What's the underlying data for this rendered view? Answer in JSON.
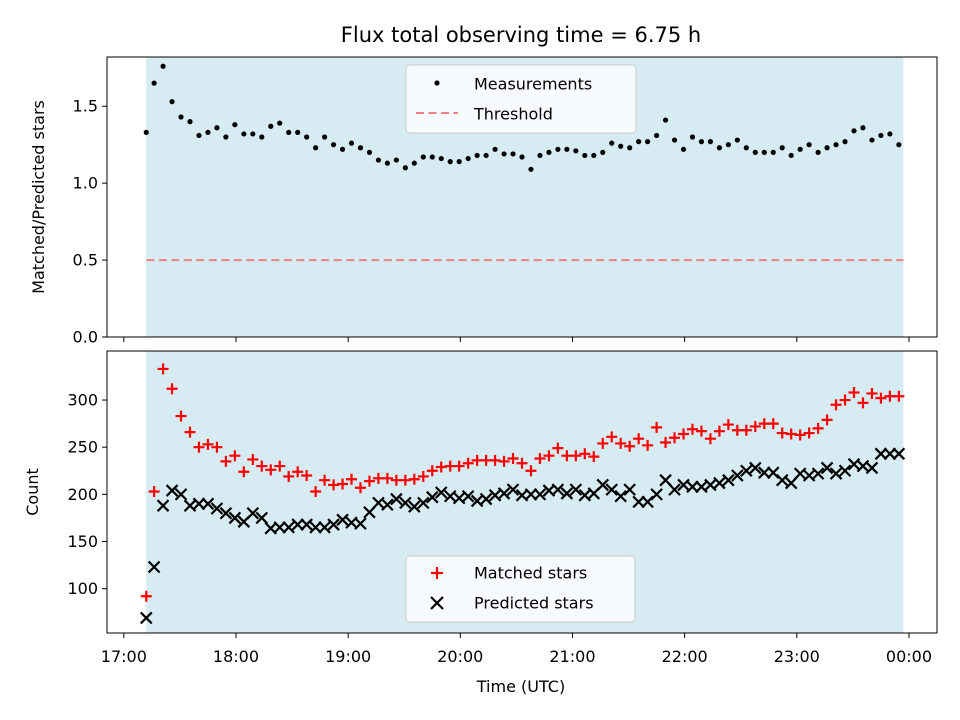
{
  "chart_data": [
    {
      "type": "scatter",
      "title": "Flux total observing time = 6.75 h",
      "ylabel": "Matched/Predicted stars",
      "xlabel": "",
      "ylim": [
        0,
        1.82
      ],
      "yticks": [
        "0.0",
        "0.5",
        "1.0",
        "1.5"
      ],
      "observing_window": {
        "start_hours": 17.2,
        "end_hours": 23.95,
        "color": "#add8e6"
      },
      "legend": {
        "placement": "upper-center",
        "entries": [
          "Measurements",
          "Threshold"
        ]
      },
      "series": [
        {
          "name": "Measurements",
          "marker": "dot",
          "color": "#000000",
          "x": [
            17.2,
            17.27,
            17.35,
            17.43,
            17.51,
            17.59,
            17.67,
            17.75,
            17.83,
            17.91,
            17.99,
            18.07,
            18.15,
            18.23,
            18.31,
            18.39,
            18.47,
            18.55,
            18.63,
            18.71,
            18.79,
            18.87,
            18.95,
            19.03,
            19.11,
            19.19,
            19.27,
            19.35,
            19.43,
            19.51,
            19.59,
            19.67,
            19.75,
            19.83,
            19.91,
            19.99,
            20.07,
            20.15,
            20.23,
            20.31,
            20.39,
            20.47,
            20.55,
            20.63,
            20.71,
            20.79,
            20.87,
            20.95,
            21.03,
            21.11,
            21.19,
            21.27,
            21.35,
            21.43,
            21.51,
            21.59,
            21.67,
            21.75,
            21.83,
            21.91,
            21.99,
            22.07,
            22.15,
            22.23,
            22.31,
            22.39,
            22.47,
            22.55,
            22.63,
            22.71,
            22.79,
            22.87,
            22.95,
            23.03,
            23.11,
            23.19,
            23.27,
            23.35,
            23.43,
            23.51,
            23.59,
            23.67,
            23.75,
            23.83,
            23.91
          ],
          "y": [
            1.33,
            1.65,
            1.76,
            1.53,
            1.43,
            1.4,
            1.31,
            1.33,
            1.36,
            1.3,
            1.38,
            1.32,
            1.32,
            1.3,
            1.37,
            1.39,
            1.33,
            1.33,
            1.3,
            1.23,
            1.3,
            1.25,
            1.22,
            1.26,
            1.23,
            1.2,
            1.15,
            1.13,
            1.15,
            1.1,
            1.13,
            1.17,
            1.17,
            1.16,
            1.14,
            1.14,
            1.16,
            1.18,
            1.18,
            1.22,
            1.19,
            1.19,
            1.17,
            1.09,
            1.18,
            1.2,
            1.22,
            1.22,
            1.21,
            1.18,
            1.18,
            1.2,
            1.26,
            1.24,
            1.23,
            1.27,
            1.27,
            1.31,
            1.41,
            1.28,
            1.22,
            1.3,
            1.27,
            1.27,
            1.23,
            1.25,
            1.28,
            1.23,
            1.2,
            1.2,
            1.2,
            1.23,
            1.18,
            1.22,
            1.25,
            1.2,
            1.23,
            1.25,
            1.27,
            1.34,
            1.36,
            1.28,
            1.31,
            1.32,
            1.25
          ]
        },
        {
          "name": "Threshold",
          "marker": "dashed-line",
          "color": "#f08080",
          "value": 0.5
        }
      ]
    },
    {
      "type": "scatter",
      "title": "",
      "xlabel": "Time (UTC)",
      "ylabel": "Count",
      "ylim": [
        53,
        352
      ],
      "xlim": [
        16.85,
        24.25
      ],
      "xticks": [
        "17:00",
        "18:00",
        "19:00",
        "20:00",
        "21:00",
        "22:00",
        "23:00",
        "00:00"
      ],
      "xtick_values": [
        17,
        18,
        19,
        20,
        21,
        22,
        23,
        24
      ],
      "yticks": [
        "100",
        "150",
        "200",
        "250",
        "300"
      ],
      "ytick_values": [
        100,
        150,
        200,
        250,
        300
      ],
      "legend": {
        "placement": "lower-center",
        "entries": [
          "Matched stars",
          "Predicted stars"
        ]
      },
      "series": [
        {
          "name": "Matched stars",
          "marker": "plus",
          "color": "#ff0000",
          "x": [
            17.2,
            17.27,
            17.35,
            17.43,
            17.51,
            17.59,
            17.67,
            17.75,
            17.83,
            17.91,
            17.99,
            18.07,
            18.15,
            18.23,
            18.31,
            18.39,
            18.47,
            18.55,
            18.63,
            18.71,
            18.79,
            18.87,
            18.95,
            19.03,
            19.11,
            19.19,
            19.27,
            19.35,
            19.43,
            19.51,
            19.59,
            19.67,
            19.75,
            19.83,
            19.91,
            19.99,
            20.07,
            20.15,
            20.23,
            20.31,
            20.39,
            20.47,
            20.55,
            20.63,
            20.71,
            20.79,
            20.87,
            20.95,
            21.03,
            21.11,
            21.19,
            21.27,
            21.35,
            21.43,
            21.51,
            21.59,
            21.67,
            21.75,
            21.83,
            21.91,
            21.99,
            22.07,
            22.15,
            22.23,
            22.31,
            22.39,
            22.47,
            22.55,
            22.63,
            22.71,
            22.79,
            22.87,
            22.95,
            23.03,
            23.11,
            23.19,
            23.27,
            23.35,
            23.43,
            23.51,
            23.59,
            23.67,
            23.75,
            23.83,
            23.91
          ],
          "y": [
            92,
            203,
            333,
            312,
            283,
            266,
            250,
            253,
            250,
            235,
            241,
            224,
            237,
            230,
            226,
            230,
            219,
            224,
            220,
            203,
            215,
            210,
            211,
            216,
            207,
            214,
            217,
            217,
            215,
            215,
            216,
            219,
            225,
            229,
            230,
            230,
            233,
            236,
            236,
            236,
            235,
            238,
            233,
            225,
            238,
            241,
            249,
            241,
            241,
            243,
            240,
            254,
            261,
            254,
            251,
            259,
            252,
            271,
            255,
            260,
            264,
            269,
            267,
            259,
            267,
            274,
            268,
            268,
            272,
            275,
            275,
            265,
            264,
            263,
            265,
            270,
            279,
            295,
            300,
            308,
            297,
            307,
            302,
            304,
            304
          ]
        },
        {
          "name": "Predicted stars",
          "marker": "x",
          "color": "#000000",
          "x": [
            17.2,
            17.27,
            17.35,
            17.43,
            17.51,
            17.59,
            17.67,
            17.75,
            17.83,
            17.91,
            17.99,
            18.07,
            18.15,
            18.23,
            18.31,
            18.39,
            18.47,
            18.55,
            18.63,
            18.71,
            18.79,
            18.87,
            18.95,
            19.03,
            19.11,
            19.19,
            19.27,
            19.35,
            19.43,
            19.51,
            19.59,
            19.67,
            19.75,
            19.83,
            19.91,
            19.99,
            20.07,
            20.15,
            20.23,
            20.31,
            20.39,
            20.47,
            20.55,
            20.63,
            20.71,
            20.79,
            20.87,
            20.95,
            21.03,
            21.11,
            21.19,
            21.27,
            21.35,
            21.43,
            21.51,
            21.59,
            21.67,
            21.75,
            21.83,
            21.91,
            21.99,
            22.07,
            22.15,
            22.23,
            22.31,
            22.39,
            22.47,
            22.55,
            22.63,
            22.71,
            22.79,
            22.87,
            22.95,
            23.03,
            23.11,
            23.19,
            23.27,
            23.35,
            23.43,
            23.51,
            23.59,
            23.67,
            23.75,
            23.83,
            23.91
          ],
          "y": [
            69,
            123,
            188,
            204,
            200,
            188,
            190,
            190,
            185,
            180,
            175,
            171,
            180,
            175,
            164,
            165,
            165,
            168,
            168,
            165,
            165,
            168,
            173,
            170,
            169,
            181,
            191,
            189,
            195,
            191,
            187,
            191,
            197,
            202,
            198,
            196,
            198,
            193,
            195,
            199,
            201,
            205,
            199,
            200,
            200,
            204,
            205,
            201,
            205,
            199,
            201,
            210,
            205,
            198,
            205,
            192,
            192,
            200,
            215,
            205,
            210,
            208,
            208,
            210,
            212,
            215,
            220,
            225,
            228,
            223,
            223,
            215,
            212,
            222,
            220,
            222,
            228,
            222,
            225,
            232,
            230,
            228,
            243,
            243,
            243
          ]
        }
      ]
    }
  ]
}
